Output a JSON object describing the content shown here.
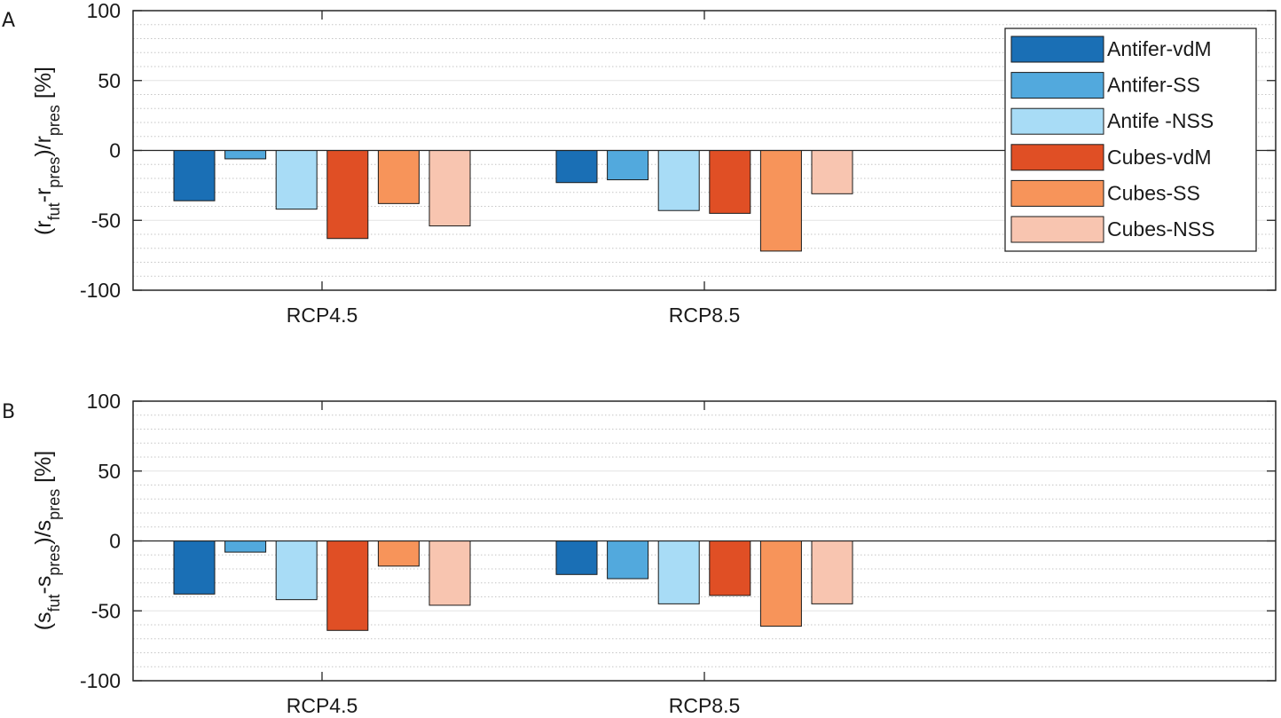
{
  "series": [
    {
      "name": "Antifer-vdM",
      "color": "#1a6fb5"
    },
    {
      "name": "Antifer-SS",
      "color": "#52a9dd"
    },
    {
      "name": "Antife -NSS",
      "color": "#a8dcf6"
    },
    {
      "name": "Cubes-vdM",
      "color": "#e04f25"
    },
    {
      "name": "Cubes-SS",
      "color": "#f7945a"
    },
    {
      "name": "Cubes-NSS",
      "color": "#f8c5b0"
    }
  ],
  "chart_data": [
    {
      "type": "bar",
      "panel": "A",
      "ylabel": {
        "open": "(r",
        "sub1": "fut",
        "mid": "-r",
        "sub2": "pres",
        "close": ")/r",
        "sub3": "pres",
        "unit": " [%]"
      },
      "ylim": [
        -100,
        100
      ],
      "yticks": [
        100,
        50,
        0,
        -50,
        -100
      ],
      "ytick_labels": [
        "100",
        "50",
        "0",
        "-50",
        "-100"
      ],
      "categories": [
        "RCP4.5",
        "RCP8.5"
      ],
      "grid": "minor-dotted",
      "legend": "top-right",
      "values": [
        [
          -36,
          -6,
          -42,
          -63,
          -38,
          -54
        ],
        [
          -23,
          -21,
          -43,
          -45,
          -72,
          -31
        ]
      ]
    },
    {
      "type": "bar",
      "panel": "B",
      "ylabel": {
        "open": "(s",
        "sub1": "fut",
        "mid": "-s",
        "sub2": "pres",
        "close": ")/s",
        "sub3": "pres",
        "unit": " [%]"
      },
      "ylim": [
        -100,
        100
      ],
      "yticks": [
        100,
        50,
        0,
        -50,
        -100
      ],
      "ytick_labels": [
        "100",
        "50",
        "0",
        "-50",
        "-100"
      ],
      "categories": [
        "RCP4.5",
        "RCP8.5"
      ],
      "grid": "minor-dotted",
      "values": [
        [
          -38,
          -8,
          -42,
          -64,
          -18,
          -46
        ],
        [
          -24,
          -27,
          -45,
          -39,
          -61,
          -45
        ]
      ]
    }
  ]
}
